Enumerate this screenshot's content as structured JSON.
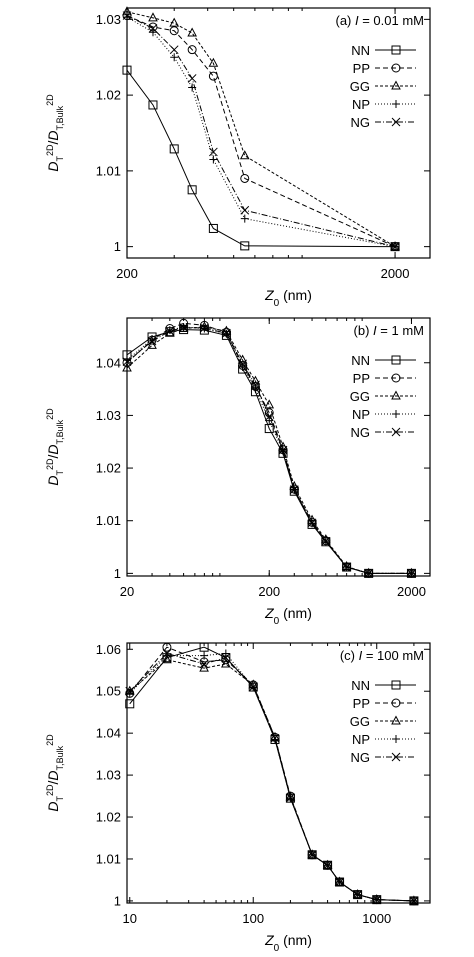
{
  "chart_data": [
    {
      "type": "line",
      "panel_label": "(a) I = 0.01 mM",
      "panel_prefix": "(a) ",
      "panel_var": "I",
      "panel_suffix": " = 0.01 mM",
      "xlabel": "Z0 (nm)",
      "ylabel": "D_T^2D / D_T,Bulk^2D",
      "xscale": "log",
      "xlim": [
        200,
        2700
      ],
      "ylim": [
        0.9985,
        1.0315
      ],
      "xticks": [
        200,
        2000
      ],
      "xtick_labels": [
        "200",
        "2000"
      ],
      "yticks": [
        1.0,
        1.01,
        1.02,
        1.03
      ],
      "ytick_labels": [
        "1",
        "1.01",
        "1.02",
        "1.03"
      ],
      "legend_position": "top-right",
      "series": [
        {
          "name": "NN",
          "marker": "square",
          "dash": "",
          "x": [
            200,
            250,
            300,
            350,
            420,
            550,
            2000
          ],
          "y": [
            1.0233,
            1.0187,
            1.0129,
            1.0075,
            1.0024,
            1.0001,
            1.0
          ]
        },
        {
          "name": "PP",
          "marker": "circle",
          "dash": "5,3",
          "x": [
            200,
            250,
            300,
            350,
            420,
            550,
            2000
          ],
          "y": [
            1.0305,
            1.029,
            1.0285,
            1.026,
            1.0225,
            1.009,
            1.0
          ]
        },
        {
          "name": "GG",
          "marker": "triangle",
          "dash": "3,2",
          "x": [
            200,
            250,
            300,
            350,
            420,
            550,
            2000
          ],
          "y": [
            1.031,
            1.0302,
            1.0295,
            1.0282,
            1.0242,
            1.012,
            1.0
          ]
        },
        {
          "name": "NP",
          "marker": "plus",
          "dash": "1,2",
          "x": [
            200,
            250,
            300,
            350,
            420,
            550,
            2000
          ],
          "y": [
            1.0303,
            1.0283,
            1.025,
            1.021,
            1.0115,
            1.0037,
            1.0
          ]
        },
        {
          "name": "NG",
          "marker": "cross",
          "dash": "6,2,1,2",
          "x": [
            200,
            250,
            300,
            350,
            420,
            550,
            2000
          ],
          "y": [
            1.0305,
            1.0288,
            1.026,
            1.0222,
            1.0125,
            1.0048,
            1.0
          ]
        }
      ]
    },
    {
      "type": "line",
      "panel_label": "(b) I = 1 mM",
      "panel_prefix": "(b) ",
      "panel_var": "I",
      "panel_suffix": " = 1 mM",
      "xlabel": "Z0 (nm)",
      "ylabel": "D_T^2D / D_T,Bulk^2D",
      "xscale": "log",
      "xlim": [
        20,
        2700
      ],
      "ylim": [
        0.9995,
        1.0485
      ],
      "xticks": [
        20,
        200,
        2000
      ],
      "xtick_labels": [
        "20",
        "200",
        "2000"
      ],
      "yticks": [
        1.0,
        1.01,
        1.02,
        1.03,
        1.04
      ],
      "ytick_labels": [
        "1",
        "1.01",
        "1.02",
        "1.03",
        "1.04"
      ],
      "legend_position": "top-right",
      "series": [
        {
          "name": "NN",
          "marker": "square",
          "dash": "",
          "x": [
            20,
            30,
            40,
            50,
            70,
            100,
            130,
            160,
            200,
            250,
            300,
            400,
            500,
            700,
            1000,
            2000
          ],
          "y": [
            1.0415,
            1.0449,
            1.0459,
            1.0463,
            1.0462,
            1.0452,
            1.0388,
            1.0345,
            1.0275,
            1.0228,
            1.0156,
            1.0093,
            1.006,
            1.0012,
            1.0,
            1.0
          ]
        },
        {
          "name": "PP",
          "marker": "circle",
          "dash": "5,3",
          "x": [
            20,
            30,
            40,
            50,
            70,
            100,
            130,
            160,
            200,
            250,
            300,
            400,
            500,
            700,
            1000,
            2000
          ],
          "y": [
            1.04,
            1.0443,
            1.0465,
            1.0475,
            1.0471,
            1.0458,
            1.0395,
            1.0355,
            1.0305,
            1.0235,
            1.016,
            1.0097,
            1.0062,
            1.0012,
            1.0,
            1.0
          ]
        },
        {
          "name": "GG",
          "marker": "triangle",
          "dash": "3,2",
          "x": [
            20,
            30,
            40,
            50,
            70,
            100,
            130,
            160,
            200,
            250,
            300,
            400,
            500,
            700,
            1000,
            2000
          ],
          "y": [
            1.039,
            1.0433,
            1.0456,
            1.0465,
            1.0468,
            1.046,
            1.0405,
            1.0365,
            1.032,
            1.024,
            1.0165,
            1.0101,
            1.0064,
            1.0013,
            1.0,
            1.0
          ]
        },
        {
          "name": "NP",
          "marker": "plus",
          "dash": "1,2",
          "x": [
            20,
            30,
            40,
            50,
            70,
            100,
            130,
            160,
            200,
            250,
            300,
            400,
            500,
            700,
            1000,
            2000
          ],
          "y": [
            1.0405,
            1.0445,
            1.0462,
            1.0468,
            1.0465,
            1.0455,
            1.0392,
            1.035,
            1.029,
            1.0232,
            1.0158,
            1.0095,
            1.0061,
            1.0012,
            1.0,
            1.0
          ]
        },
        {
          "name": "NG",
          "marker": "cross",
          "dash": "6,2,1,2",
          "x": [
            20,
            30,
            40,
            50,
            70,
            100,
            130,
            160,
            200,
            250,
            300,
            400,
            500,
            700,
            1000,
            2000
          ],
          "y": [
            1.0402,
            1.0441,
            1.046,
            1.0467,
            1.0466,
            1.0456,
            1.0398,
            1.0358,
            1.0298,
            1.0234,
            1.0159,
            1.0096,
            1.0061,
            1.0012,
            1.0,
            1.0
          ]
        }
      ]
    },
    {
      "type": "line",
      "panel_label": "(c) I = 100 mM",
      "panel_prefix": "(c) ",
      "panel_var": "I",
      "panel_suffix": " = 100 mM",
      "xlabel": "Z0 (nm)",
      "ylabel": "D_T^2D / D_T,Bulk^2D",
      "xscale": "log",
      "xlim": [
        9.5,
        2700
      ],
      "ylim": [
        0.9995,
        1.0615
      ],
      "xticks": [
        10,
        100,
        1000
      ],
      "xtick_labels": [
        "10",
        "100",
        "1000"
      ],
      "yticks": [
        1.0,
        1.01,
        1.02,
        1.03,
        1.04,
        1.05,
        1.06
      ],
      "ytick_labels": [
        "1",
        "1.01",
        "1.02",
        "1.03",
        "1.04",
        "1.05",
        "1.06"
      ],
      "legend_position": "top-right",
      "series": [
        {
          "name": "NN",
          "marker": "square",
          "dash": "",
          "x": [
            10,
            20,
            40,
            60,
            100,
            150,
            200,
            300,
            400,
            500,
            700,
            1000,
            2000
          ],
          "y": [
            1.047,
            1.058,
            1.0605,
            1.058,
            1.051,
            1.0385,
            1.0245,
            1.011,
            1.0085,
            1.0045,
            1.0015,
            1.0003,
            1.0
          ]
        },
        {
          "name": "PP",
          "marker": "circle",
          "dash": "5,3",
          "x": [
            10,
            20,
            40,
            60,
            100,
            150,
            200,
            300,
            400,
            500,
            700,
            1000,
            2000
          ],
          "y": [
            1.0495,
            1.0605,
            1.057,
            1.0575,
            1.0515,
            1.039,
            1.025,
            1.011,
            1.0085,
            1.0045,
            1.0015,
            1.0003,
            1.0
          ]
        },
        {
          "name": "GG",
          "marker": "triangle",
          "dash": "3,2",
          "x": [
            10,
            20,
            40,
            60,
            100,
            150,
            200,
            300,
            400,
            500,
            700,
            1000,
            2000
          ],
          "y": [
            1.05,
            1.0575,
            1.0555,
            1.0565,
            1.0515,
            1.039,
            1.0248,
            1.011,
            1.0085,
            1.0045,
            1.0015,
            1.0003,
            1.0
          ]
        },
        {
          "name": "NP",
          "marker": "plus",
          "dash": "1,2",
          "x": [
            10,
            20,
            40,
            60,
            100,
            150,
            200,
            300,
            400,
            500,
            700,
            1000,
            2000
          ],
          "y": [
            1.0495,
            1.0585,
            1.0585,
            1.059,
            1.051,
            1.0385,
            1.0245,
            1.011,
            1.0085,
            1.0045,
            1.0015,
            1.0003,
            1.0
          ]
        },
        {
          "name": "NG",
          "marker": "cross",
          "dash": "6,2,1,2",
          "x": [
            10,
            20,
            40,
            60,
            100,
            150,
            200,
            300,
            400,
            500,
            700,
            1000,
            2000
          ],
          "y": [
            1.05,
            1.059,
            1.0565,
            1.058,
            1.051,
            1.0388,
            1.0246,
            1.011,
            1.0085,
            1.0045,
            1.0015,
            1.0003,
            1.0
          ]
        }
      ]
    }
  ]
}
